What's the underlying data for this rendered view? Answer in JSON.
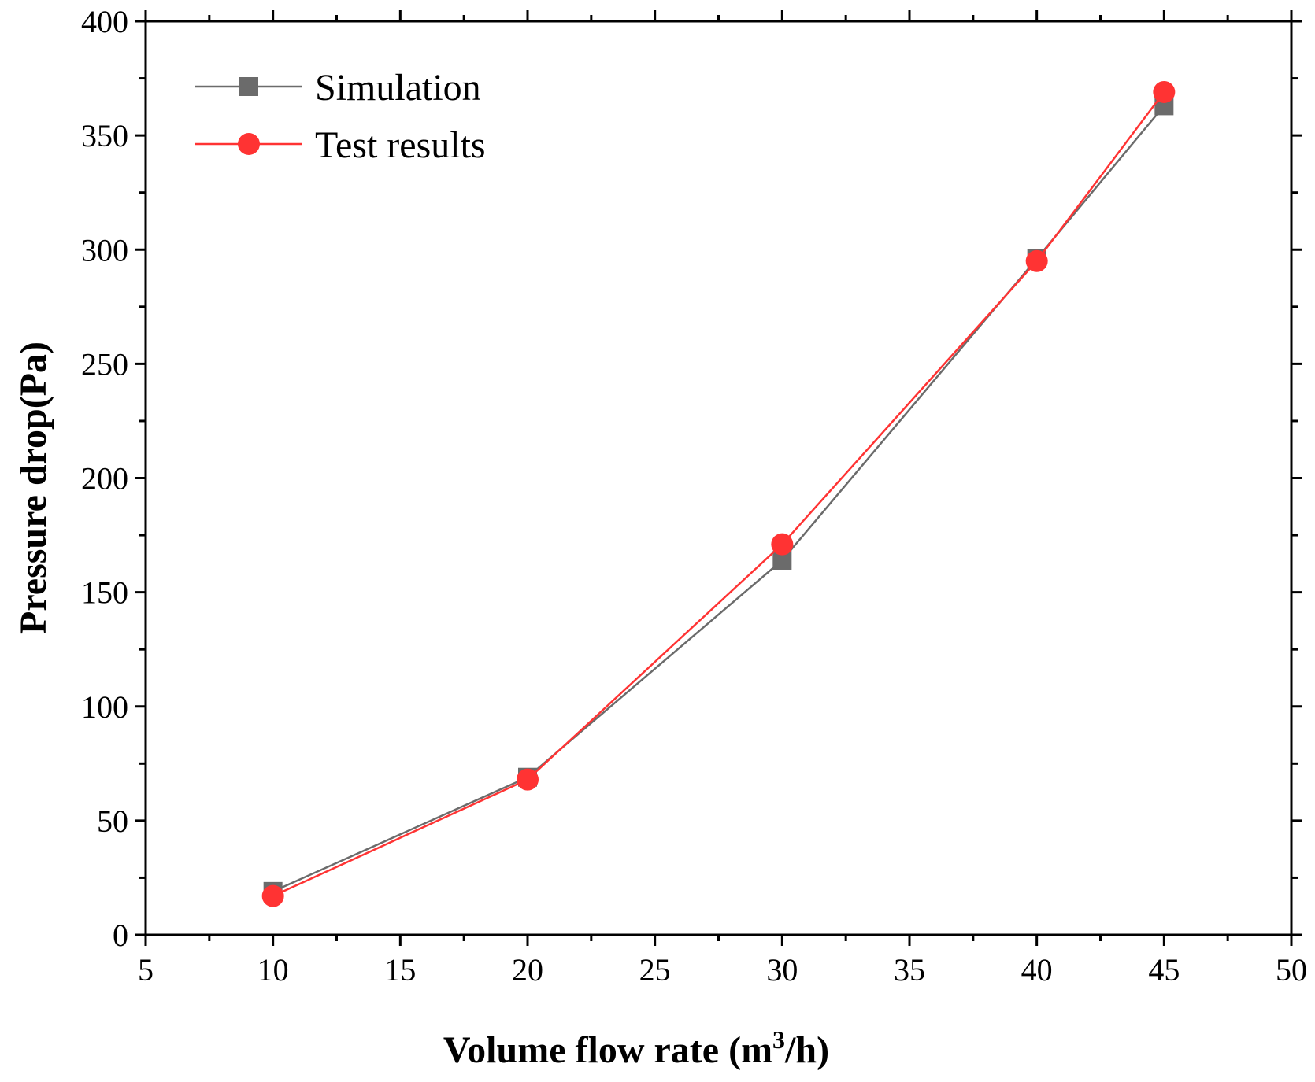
{
  "chart_data": {
    "type": "line",
    "title": "",
    "xlabel": "Volume flow rate (m",
    "xlabel_sup": "3",
    "xlabel_tail": "/h)",
    "ylabel": "Pressure drop(Pa)",
    "xlim": [
      5,
      50
    ],
    "ylim": [
      0,
      400
    ],
    "xticks": [
      "5",
      "10",
      "15",
      "20",
      "25",
      "30",
      "35",
      "40",
      "45",
      "50"
    ],
    "yticks": [
      "0",
      "50",
      "100",
      "150",
      "200",
      "250",
      "300",
      "350",
      "400"
    ],
    "legend_position": "top-left",
    "series": [
      {
        "name": "Simulation",
        "marker": "square",
        "color": "#6b6b6b",
        "x": [
          10,
          20,
          30,
          40,
          45
        ],
        "values": [
          19,
          69,
          164,
          296,
          363
        ]
      },
      {
        "name": "Test results",
        "marker": "circle",
        "color": "#ff3333",
        "x": [
          10,
          20,
          30,
          40,
          45
        ],
        "values": [
          17,
          68,
          171,
          295,
          369
        ]
      }
    ]
  }
}
